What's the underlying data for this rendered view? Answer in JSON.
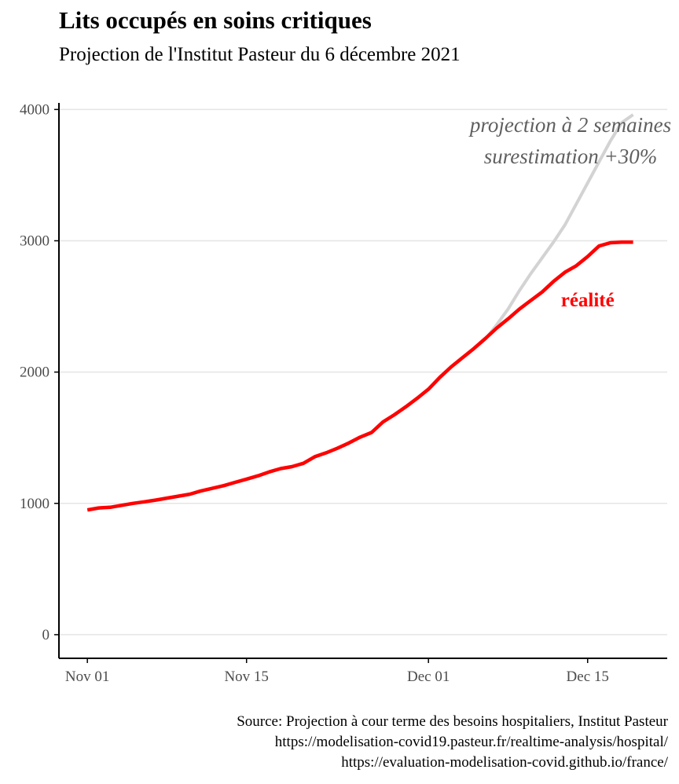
{
  "chart_data": {
    "type": "line",
    "title": "Lits occupés en soins critiques",
    "subtitle": "Projection de l'Institut Pasteur du 6 décembre 2021",
    "xlabel": "",
    "ylabel": "",
    "x_ticks": [
      {
        "label": "Nov 01",
        "day": 0
      },
      {
        "label": "Nov 15",
        "day": 14
      },
      {
        "label": "Dec 01",
        "day": 30
      },
      {
        "label": "Dec 15",
        "day": 44
      }
    ],
    "y_ticks": [
      0,
      1000,
      2000,
      3000,
      4000
    ],
    "ylim": [
      -180,
      4050
    ],
    "xlim": [
      -2.5,
      51
    ],
    "grid": "horizontal",
    "series": [
      {
        "name": "réalité",
        "color": "#ff0000",
        "points": [
          {
            "date": "2021-11-01",
            "y": 950
          },
          {
            "date": "2021-11-02",
            "y": 965
          },
          {
            "date": "2021-11-03",
            "y": 970
          },
          {
            "date": "2021-11-04",
            "y": 985
          },
          {
            "date": "2021-11-05",
            "y": 1000
          },
          {
            "date": "2021-11-06",
            "y": 1012
          },
          {
            "date": "2021-11-07",
            "y": 1025
          },
          {
            "date": "2021-11-08",
            "y": 1040
          },
          {
            "date": "2021-11-09",
            "y": 1055
          },
          {
            "date": "2021-11-10",
            "y": 1070
          },
          {
            "date": "2021-11-11",
            "y": 1095
          },
          {
            "date": "2021-11-12",
            "y": 1115
          },
          {
            "date": "2021-11-13",
            "y": 1135
          },
          {
            "date": "2021-11-14",
            "y": 1160
          },
          {
            "date": "2021-11-15",
            "y": 1185
          },
          {
            "date": "2021-11-16",
            "y": 1210
          },
          {
            "date": "2021-11-17",
            "y": 1240
          },
          {
            "date": "2021-11-18",
            "y": 1265
          },
          {
            "date": "2021-11-19",
            "y": 1280
          },
          {
            "date": "2021-11-20",
            "y": 1305
          },
          {
            "date": "2021-11-21",
            "y": 1355
          },
          {
            "date": "2021-11-22",
            "y": 1385
          },
          {
            "date": "2021-11-23",
            "y": 1420
          },
          {
            "date": "2021-11-24",
            "y": 1460
          },
          {
            "date": "2021-11-25",
            "y": 1505
          },
          {
            "date": "2021-11-26",
            "y": 1540
          },
          {
            "date": "2021-11-27",
            "y": 1620
          },
          {
            "date": "2021-11-28",
            "y": 1675
          },
          {
            "date": "2021-11-29",
            "y": 1735
          },
          {
            "date": "2021-11-30",
            "y": 1800
          },
          {
            "date": "2021-12-01",
            "y": 1870
          },
          {
            "date": "2021-12-02",
            "y": 1960
          },
          {
            "date": "2021-12-03",
            "y": 2040
          },
          {
            "date": "2021-12-04",
            "y": 2110
          },
          {
            "date": "2021-12-05",
            "y": 2180
          },
          {
            "date": "2021-12-06",
            "y": 2255
          },
          {
            "date": "2021-12-07",
            "y": 2335
          },
          {
            "date": "2021-12-08",
            "y": 2405
          },
          {
            "date": "2021-12-09",
            "y": 2480
          },
          {
            "date": "2021-12-10",
            "y": 2545
          },
          {
            "date": "2021-12-11",
            "y": 2610
          },
          {
            "date": "2021-12-12",
            "y": 2690
          },
          {
            "date": "2021-12-13",
            "y": 2760
          },
          {
            "date": "2021-12-14",
            "y": 2810
          },
          {
            "date": "2021-12-15",
            "y": 2880
          },
          {
            "date": "2021-12-16",
            "y": 2960
          },
          {
            "date": "2021-12-17",
            "y": 2985
          },
          {
            "date": "2021-12-18",
            "y": 2990
          },
          {
            "date": "2021-12-19",
            "y": 2990
          }
        ]
      },
      {
        "name": "projection à 2 semaines",
        "color": "#d3d3d3",
        "points": [
          {
            "date": "2021-12-06",
            "y": 2250
          },
          {
            "date": "2021-12-07",
            "y": 2360
          },
          {
            "date": "2021-12-08",
            "y": 2480
          },
          {
            "date": "2021-12-09",
            "y": 2620
          },
          {
            "date": "2021-12-10",
            "y": 2750
          },
          {
            "date": "2021-12-11",
            "y": 2870
          },
          {
            "date": "2021-12-12",
            "y": 2990
          },
          {
            "date": "2021-12-13",
            "y": 3120
          },
          {
            "date": "2021-12-14",
            "y": 3280
          },
          {
            "date": "2021-12-15",
            "y": 3440
          },
          {
            "date": "2021-12-16",
            "y": 3600
          },
          {
            "date": "2021-12-17",
            "y": 3760
          },
          {
            "date": "2021-12-18",
            "y": 3900
          },
          {
            "date": "2021-12-19",
            "y": 3960
          }
        ]
      }
    ],
    "annotations": [
      {
        "text": "projection à 2 semaines",
        "anchor_day": 42.5,
        "anchor_y": 3830,
        "style": "italic",
        "color": "#5f5f5f"
      },
      {
        "text": "surestimation +30%",
        "anchor_day": 42.5,
        "anchor_y": 3590,
        "style": "italic",
        "color": "#5f5f5f"
      },
      {
        "text": "réalité",
        "anchor_day": 44,
        "anchor_y": 2500,
        "style": "bold",
        "color": "#ff0000"
      }
    ]
  },
  "caption": {
    "line1": "Source: Projection à cour terme des besoins hospitaliers, Institut Pasteur",
    "line2": "https://modelisation-covid19.pasteur.fr/realtime-analysis/hospital/",
    "line3": "https://evaluation-modelisation-covid.github.io/france/"
  }
}
